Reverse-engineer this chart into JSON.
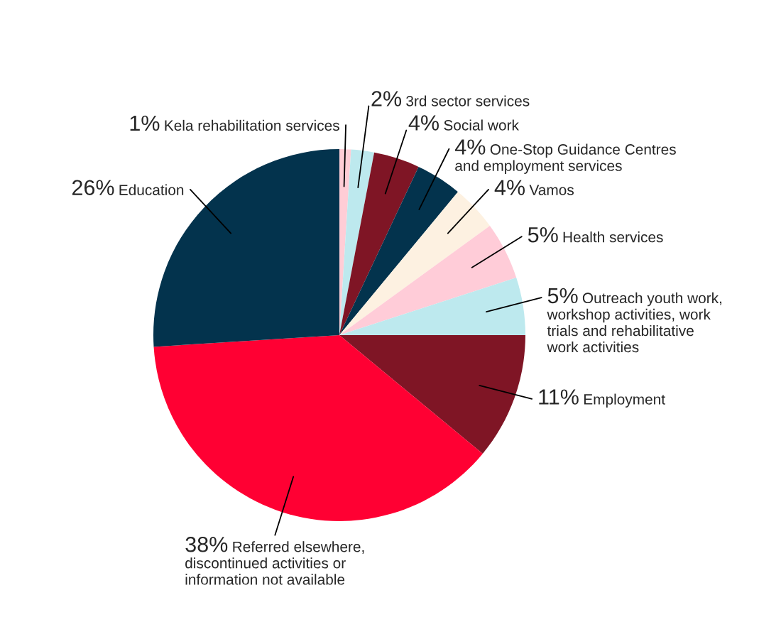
{
  "chart_data": {
    "type": "pie",
    "categories": [
      "Kela rehabilitation services",
      "3rd sector services",
      "Social work",
      "One-Stop Guidance Centres and employment services",
      "Vamos",
      "Health services",
      "Outreach youth work, workshop activities, work trials and rehabilitative work activities",
      "Employment",
      "Referred elsewhere, discontinued activities or information not available",
      "Education"
    ],
    "values": [
      1,
      2,
      4,
      4,
      4,
      5,
      5,
      11,
      38,
      26
    ],
    "value_labels": [
      "1%",
      "2%",
      "4%",
      "4%",
      "4%",
      "5%",
      "5%",
      "11%",
      "38%",
      "26%"
    ],
    "colors": [
      "#ffcdd6",
      "#bde9ee",
      "#7f1525",
      "#03334d",
      "#fdf1e1",
      "#ffccd8",
      "#bde9ee",
      "#7f1525",
      "#ff0033",
      "#03334d"
    ]
  }
}
